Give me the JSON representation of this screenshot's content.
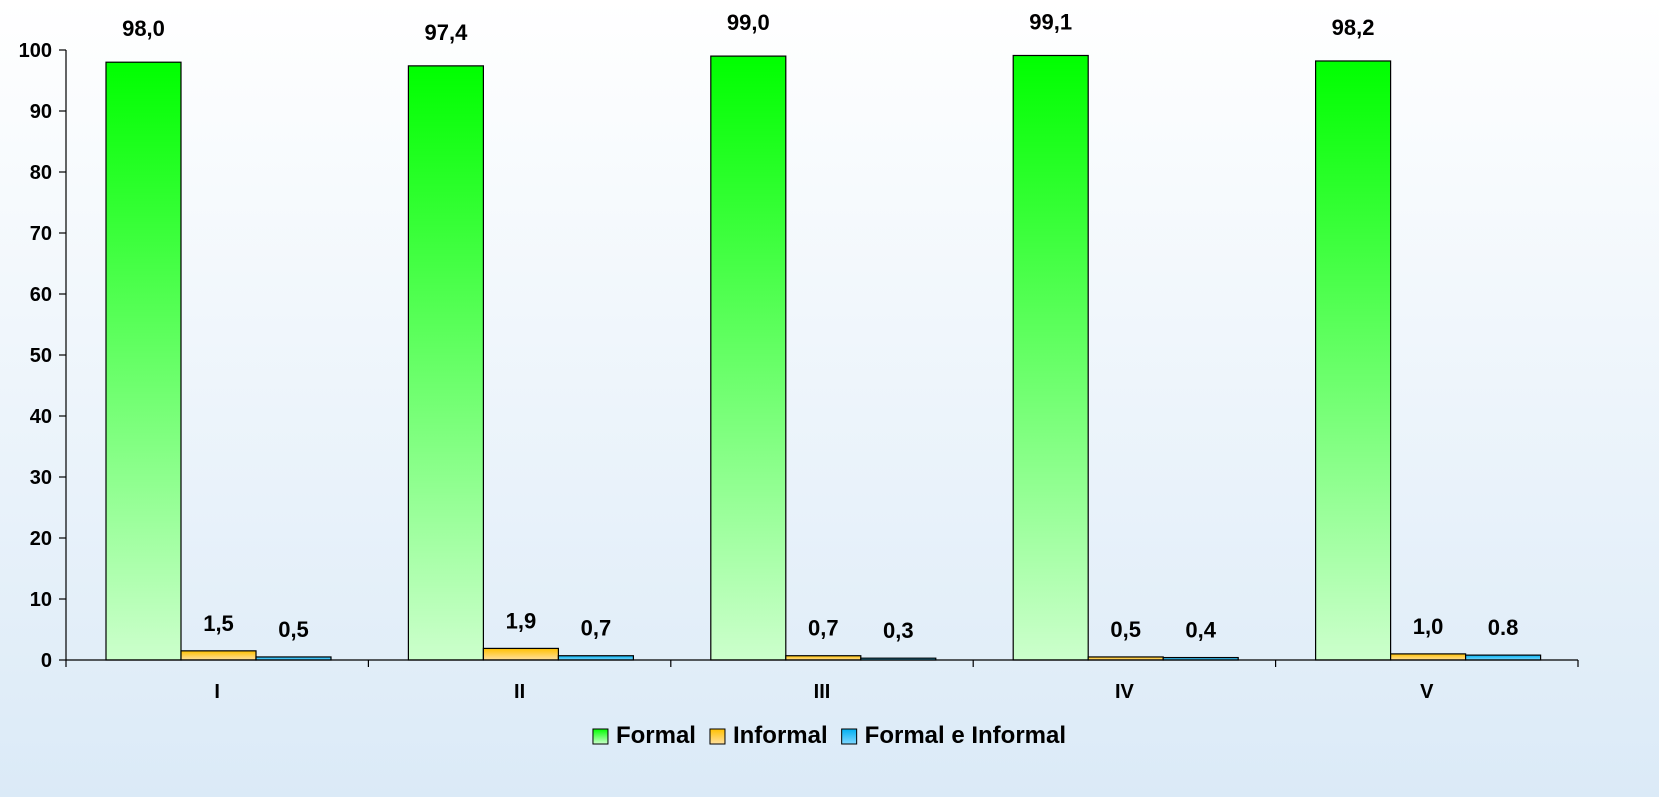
{
  "chart_data": {
    "type": "bar",
    "categories": [
      "I",
      "II",
      "III",
      "IV",
      "V"
    ],
    "series": [
      {
        "name": "Formal",
        "values": [
          98.0,
          97.4,
          99.0,
          99.1,
          98.2
        ],
        "labels": [
          "98,0",
          "97,4",
          "99,0",
          "99,1",
          "98,2"
        ],
        "color_top": "#00ff00",
        "color_bottom": "#ccffcc"
      },
      {
        "name": "Informal",
        "values": [
          1.5,
          1.9,
          0.7,
          0.5,
          1.0
        ],
        "labels": [
          "1,5",
          "1,9",
          "0,7",
          "0,5",
          "1,0"
        ],
        "color_top": "#ffc000",
        "color_bottom": "#ffe0a0"
      },
      {
        "name": "Formal e Informal",
        "values": [
          0.5,
          0.7,
          0.3,
          0.4,
          0.8
        ],
        "labels": [
          "0,5",
          "0,7",
          "0,3",
          "0,4",
          "0.8"
        ],
        "color_top": "#00b0f0",
        "color_bottom": "#80d8ff"
      }
    ],
    "yticks": [
      "0",
      "10",
      "20",
      "30",
      "40",
      "50",
      "60",
      "70",
      "80",
      "90",
      "100"
    ],
    "ylim": [
      0,
      100
    ],
    "grid": false,
    "legend_position": "bottom",
    "background_top": "#ffffff",
    "background_bottom": "#dbeaf7"
  }
}
